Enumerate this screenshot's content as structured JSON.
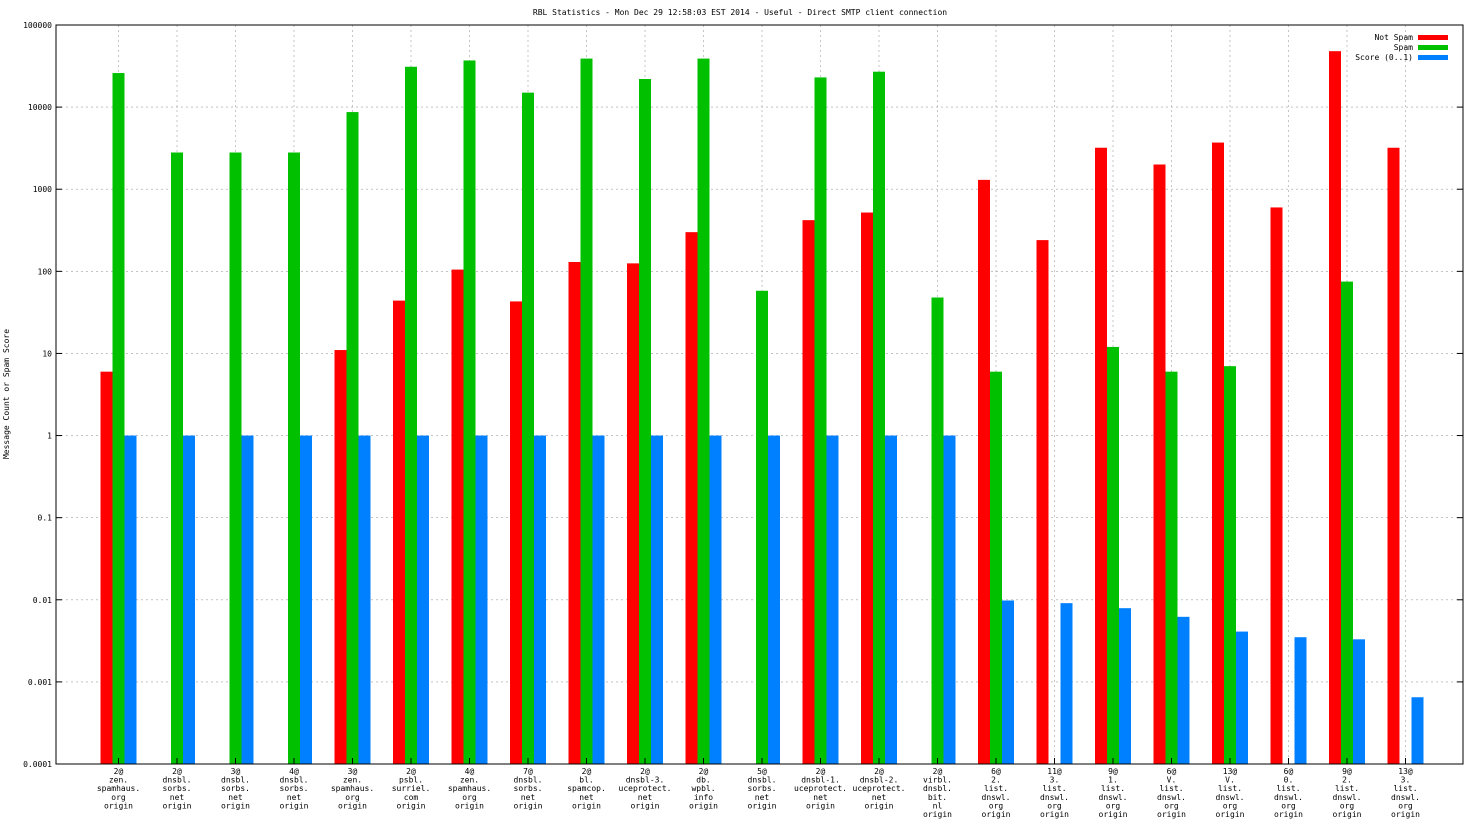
{
  "chart_data": {
    "type": "bar",
    "title": "RBL Statistics - Mon Dec 29 12:58:03 EST 2014 - Useful - Direct SMTP client connection",
    "xlabel": "",
    "ylabel": "Message Count or Spam Score",
    "yscale": "log",
    "ylim": [
      0.0001,
      100000
    ],
    "y_ticks": [
      "100000",
      "10000",
      "1000",
      "100",
      "10",
      "1",
      "0.1",
      "0.01",
      "0.001",
      "0.0001"
    ],
    "grid": true,
    "legend_position": "top-right",
    "categories": [
      [
        "2@",
        "zen.",
        "spamhaus.",
        "org",
        "origin"
      ],
      [
        "2@",
        "dnsbl.",
        "sorbs.",
        "net",
        "origin"
      ],
      [
        "3@",
        "dnsbl.",
        "sorbs.",
        "net",
        "origin"
      ],
      [
        "4@",
        "dnsbl.",
        "sorbs.",
        "net",
        "origin"
      ],
      [
        "3@",
        "zen.",
        "spamhaus.",
        "org",
        "origin"
      ],
      [
        "2@",
        "psbl.",
        "surriel.",
        "com",
        "origin"
      ],
      [
        "4@",
        "zen.",
        "spamhaus.",
        "org",
        "origin"
      ],
      [
        "7@",
        "dnsbl.",
        "sorbs.",
        "net",
        "origin"
      ],
      [
        "2@",
        "bl.",
        "spamcop.",
        "net",
        "origin"
      ],
      [
        "2@",
        "dnsbl-3.",
        "uceprotect.",
        "net",
        "origin"
      ],
      [
        "2@",
        "db.",
        "wpbl.",
        "info",
        "origin"
      ],
      [
        "5@",
        "dnsbl.",
        "sorbs.",
        "net",
        "origin"
      ],
      [
        "2@",
        "dnsbl-1.",
        "uceprotect.",
        "net",
        "origin"
      ],
      [
        "2@",
        "dnsbl-2.",
        "uceprotect.",
        "net",
        "origin"
      ],
      [
        "2@",
        "virbl.",
        "dnsbl.",
        "bit.",
        "nl",
        "origin"
      ],
      [
        "6@",
        "2.",
        "list.",
        "dnswl.",
        "org",
        "origin"
      ],
      [
        "11@",
        "3.",
        "list.",
        "dnswl.",
        "org",
        "origin"
      ],
      [
        "9@",
        "1.",
        "list.",
        "dnswl.",
        "org",
        "origin"
      ],
      [
        "6@",
        "V.",
        "list.",
        "dnswl.",
        "org",
        "origin"
      ],
      [
        "13@",
        "V.",
        "list.",
        "dnswl.",
        "org",
        "origin"
      ],
      [
        "6@",
        "0.",
        "list.",
        "dnswl.",
        "org",
        "origin"
      ],
      [
        "9@",
        "2.",
        "list.",
        "dnswl.",
        "org",
        "origin"
      ],
      [
        "13@",
        "3.",
        "list.",
        "dnswl.",
        "org",
        "origin"
      ]
    ],
    "series": [
      {
        "name": "Not Spam",
        "color": "#ff0000",
        "values": [
          6,
          null,
          null,
          null,
          11,
          44,
          105,
          43,
          130,
          125,
          300,
          null,
          420,
          520,
          null,
          1300,
          240,
          3200,
          2000,
          3700,
          600,
          48000,
          3200
        ]
      },
      {
        "name": "Spam",
        "color": "#00c000",
        "values": [
          26000,
          2800,
          2800,
          2800,
          8700,
          31000,
          37000,
          15000,
          39000,
          22000,
          39000,
          58,
          23000,
          27000,
          48,
          6,
          null,
          12,
          6,
          7,
          null,
          75,
          null
        ]
      },
      {
        "name": "Score (0..1)",
        "color": "#0080ff",
        "values": [
          1,
          1,
          1,
          1,
          1,
          1,
          1,
          1,
          1,
          1,
          1,
          1,
          1,
          1,
          1,
          0.0098,
          0.0091,
          0.0079,
          0.0062,
          0.0041,
          0.0035,
          0.0033,
          0.00065
        ]
      }
    ]
  }
}
